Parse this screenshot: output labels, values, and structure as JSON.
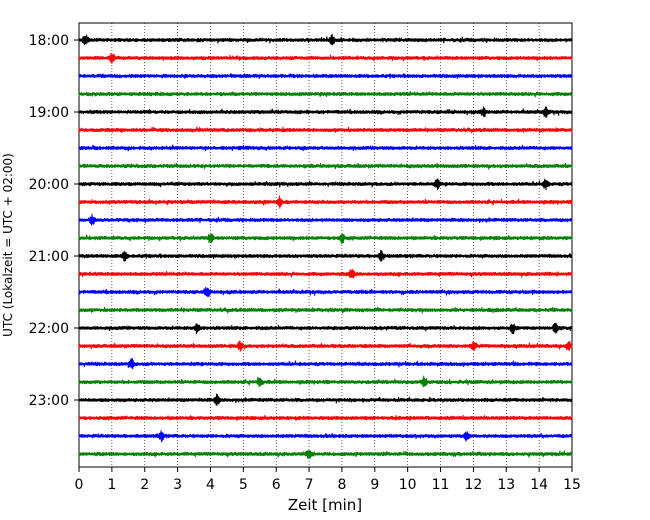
{
  "chart_data": {
    "type": "line",
    "title": "",
    "xlabel": "Zeit  [min]",
    "ylabel": "UTC (Lokalzeit = UTC + 02:00)",
    "xlim": [
      0,
      15
    ],
    "x_ticks": [
      0,
      1,
      2,
      3,
      4,
      5,
      6,
      7,
      8,
      9,
      10,
      11,
      12,
      13,
      14,
      15
    ],
    "y_tick_labels": [
      "18:00",
      "19:00",
      "20:00",
      "21:00",
      "22:00",
      "23:00"
    ],
    "grid": "vertical dotted lines at each minute",
    "legend": "none",
    "trace_colors": [
      "#000000",
      "#ff0000",
      "#0000ff",
      "#008000"
    ],
    "start_time": "18:00",
    "trace_interval_min": 15,
    "trace_count": 24,
    "trace_start_times": [
      "18:00",
      "18:15",
      "18:30",
      "18:45",
      "19:00",
      "19:15",
      "19:30",
      "19:45",
      "20:00",
      "20:15",
      "20:30",
      "20:45",
      "21:00",
      "21:15",
      "21:30",
      "21:45",
      "22:00",
      "22:15",
      "22:30",
      "22:45",
      "23:00",
      "23:15",
      "23:30",
      "23:45"
    ],
    "events": [
      {
        "trace": "18:00",
        "x": 0.2
      },
      {
        "trace": "18:00",
        "x": 7.7
      },
      {
        "trace": "18:15",
        "x": 1.0
      },
      {
        "trace": "19:00",
        "x": 12.3
      },
      {
        "trace": "19:00",
        "x": 14.2
      },
      {
        "trace": "20:00",
        "x": 10.9
      },
      {
        "trace": "20:00",
        "x": 14.2
      },
      {
        "trace": "20:15",
        "x": 6.1
      },
      {
        "trace": "20:30",
        "x": 0.4
      },
      {
        "trace": "20:45",
        "x": 4.0
      },
      {
        "trace": "20:45",
        "x": 8.0
      },
      {
        "trace": "21:00",
        "x": 1.4
      },
      {
        "trace": "21:00",
        "x": 9.2
      },
      {
        "trace": "21:15",
        "x": 8.3
      },
      {
        "trace": "21:30",
        "x": 3.9
      },
      {
        "trace": "22:00",
        "x": 3.6
      },
      {
        "trace": "22:00",
        "x": 13.2
      },
      {
        "trace": "22:00",
        "x": 14.5
      },
      {
        "trace": "22:15",
        "x": 4.9
      },
      {
        "trace": "22:15",
        "x": 12.0
      },
      {
        "trace": "22:15",
        "x": 14.9
      },
      {
        "trace": "22:30",
        "x": 1.6
      },
      {
        "trace": "22:45",
        "x": 5.5
      },
      {
        "trace": "22:45",
        "x": 10.5
      },
      {
        "trace": "23:00",
        "x": 4.2
      },
      {
        "trace": "23:30",
        "x": 2.5
      },
      {
        "trace": "23:30",
        "x": 11.8
      },
      {
        "trace": "23:45",
        "x": 7.0
      }
    ]
  }
}
